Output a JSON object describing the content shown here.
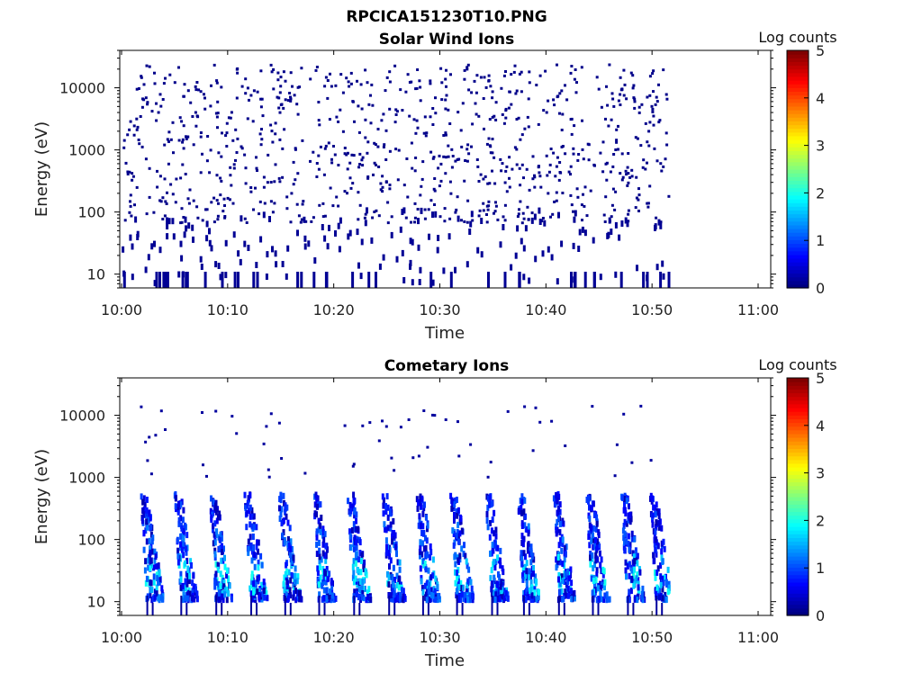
{
  "figure": {
    "title": "RPCICA151230T10.PNG"
  },
  "chart_data": [
    {
      "type": "heatmap",
      "title": "Solar Wind Ions",
      "xlabel": "Time",
      "ylabel": "Energy (eV)",
      "x_ticks": [
        "10:00",
        "10:10",
        "10:20",
        "10:30",
        "10:40",
        "10:50",
        "11:00"
      ],
      "x_range_minutes": [
        0,
        60
      ],
      "data_end_minute": 51.5,
      "y_scale": "log",
      "y_ticks": [
        "10",
        "100",
        "1000",
        "10000"
      ],
      "y_range": [
        6,
        40000
      ],
      "colorbar": {
        "label": "Log counts",
        "ticks": [
          "0",
          "1",
          "2",
          "3",
          "4",
          "5"
        ],
        "range": [
          0,
          5
        ],
        "colormap": "jet"
      },
      "description_of_values": "Sparse single counts (log counts ~0) scattered across 10 eV to 30000 eV from 10:00 to 10:51",
      "typical_log_counts": 0.05
    },
    {
      "type": "heatmap",
      "title": "Cometary Ions",
      "xlabel": "Time",
      "ylabel": "Energy (eV)",
      "x_ticks": [
        "10:00",
        "10:10",
        "10:20",
        "10:30",
        "10:40",
        "10:50",
        "11:00"
      ],
      "x_range_minutes": [
        0,
        60
      ],
      "data_end_minute": 51.5,
      "y_scale": "log",
      "y_ticks": [
        "10",
        "100",
        "1000",
        "10000"
      ],
      "y_range": [
        6,
        40000
      ],
      "colorbar": {
        "label": "Log counts",
        "ticks": [
          "0",
          "1",
          "2",
          "3",
          "4",
          "5"
        ],
        "range": [
          0,
          5
        ],
        "colormap": "jet"
      },
      "bursts_minute": [
        2.0,
        5.2,
        8.5,
        11.8,
        15.0,
        18.2,
        21.5,
        24.8,
        28.0,
        31.2,
        34.5,
        37.5,
        40.8,
        44.0,
        47.3,
        50.0
      ],
      "burst_energy_range_eV": [
        12,
        600
      ],
      "peak_log_counts": 2.0,
      "sparse_high_energy_counts_eV": [
        1000,
        15000
      ]
    }
  ]
}
